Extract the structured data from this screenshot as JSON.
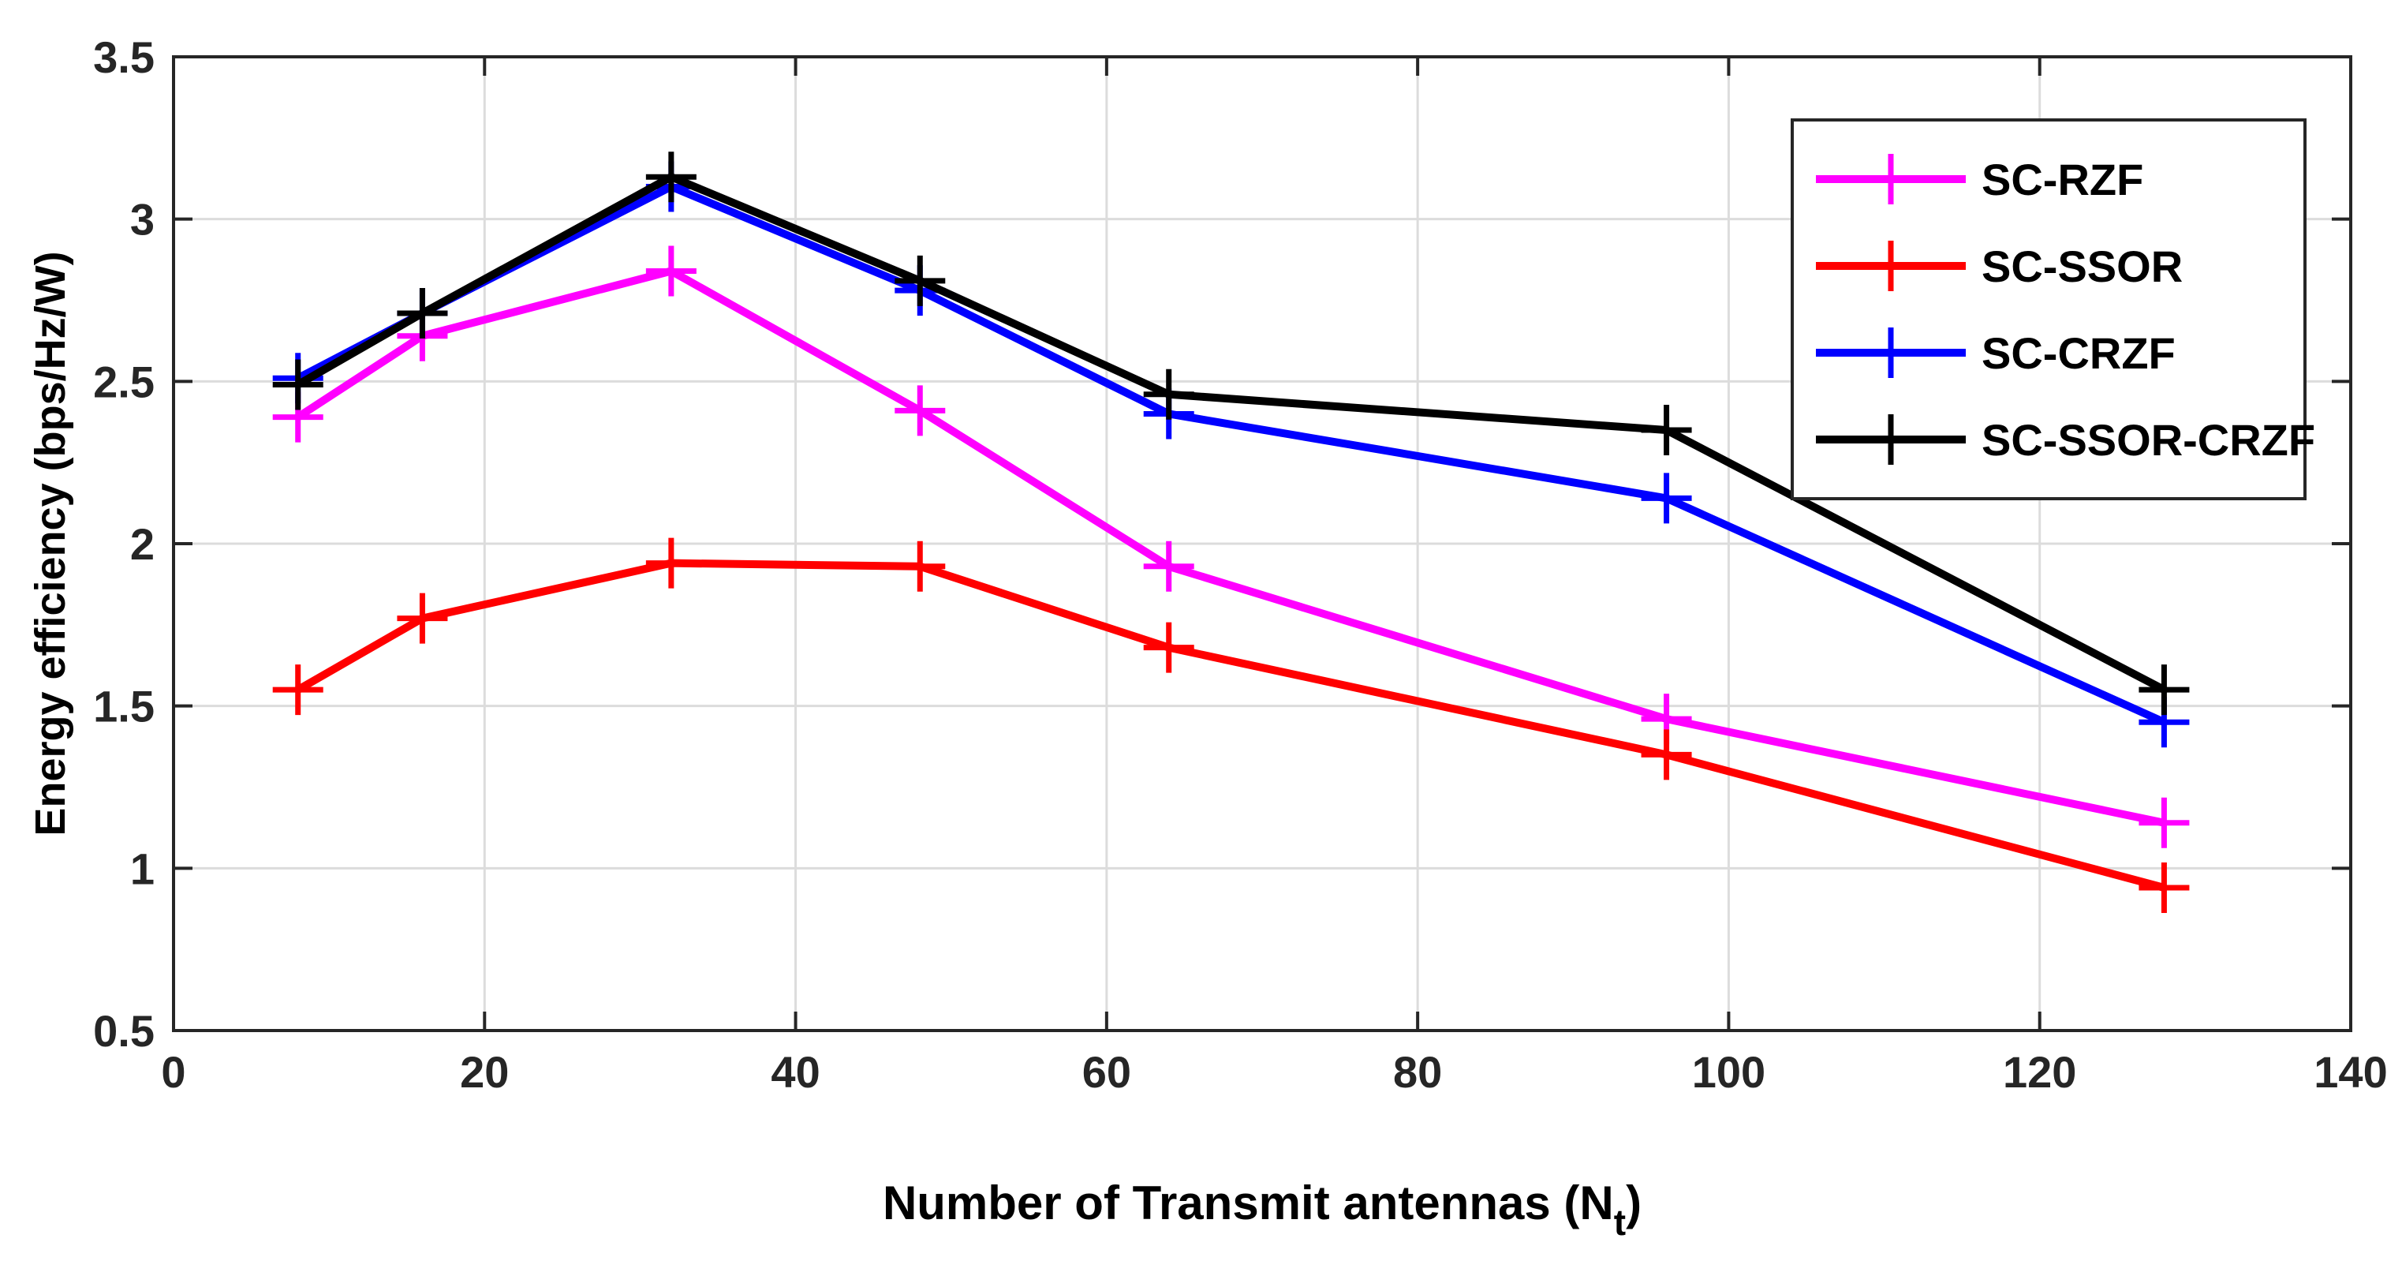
{
  "chart_data": {
    "type": "line",
    "title": "",
    "xlabel": "Number of Transmit antennas (N",
    "xlabel_subscript": "t",
    "xlabel_close": ")",
    "ylabel": "Energy efficiency (bps/Hz/W)",
    "xlim": [
      0,
      140
    ],
    "ylim": [
      0.5,
      3.5
    ],
    "xticks": [
      0,
      20,
      40,
      60,
      80,
      100,
      120,
      140
    ],
    "yticks": [
      0.5,
      1,
      1.5,
      2,
      2.5,
      3,
      3.5
    ],
    "xtick_labels": [
      "0",
      "20",
      "40",
      "60",
      "80",
      "100",
      "120",
      "140"
    ],
    "ytick_labels": [
      "0.5",
      "1",
      "1.5",
      "2",
      "2.5",
      "3",
      "3.5"
    ],
    "grid": true,
    "legend_position": "top-right",
    "x": [
      8,
      16,
      32,
      48,
      64,
      96,
      128
    ],
    "series": [
      {
        "name": "SC-RZF",
        "color": "#ff00ff",
        "marker": "plus",
        "values": [
          2.39,
          2.64,
          2.84,
          2.41,
          1.93,
          1.46,
          1.14
        ]
      },
      {
        "name": "SC-SSOR",
        "color": "#ff0000",
        "marker": "plus",
        "values": [
          1.55,
          1.77,
          1.94,
          1.93,
          1.68,
          1.35,
          0.94
        ]
      },
      {
        "name": "SC-CRZF",
        "color": "#0000ff",
        "marker": "plus",
        "values": [
          2.51,
          2.71,
          3.1,
          2.78,
          2.4,
          2.14,
          1.45
        ]
      },
      {
        "name": "SC-SSOR-CRZF",
        "color": "#000000",
        "marker": "plus",
        "values": [
          2.49,
          2.71,
          3.13,
          2.81,
          2.46,
          2.35,
          1.55
        ]
      }
    ]
  }
}
